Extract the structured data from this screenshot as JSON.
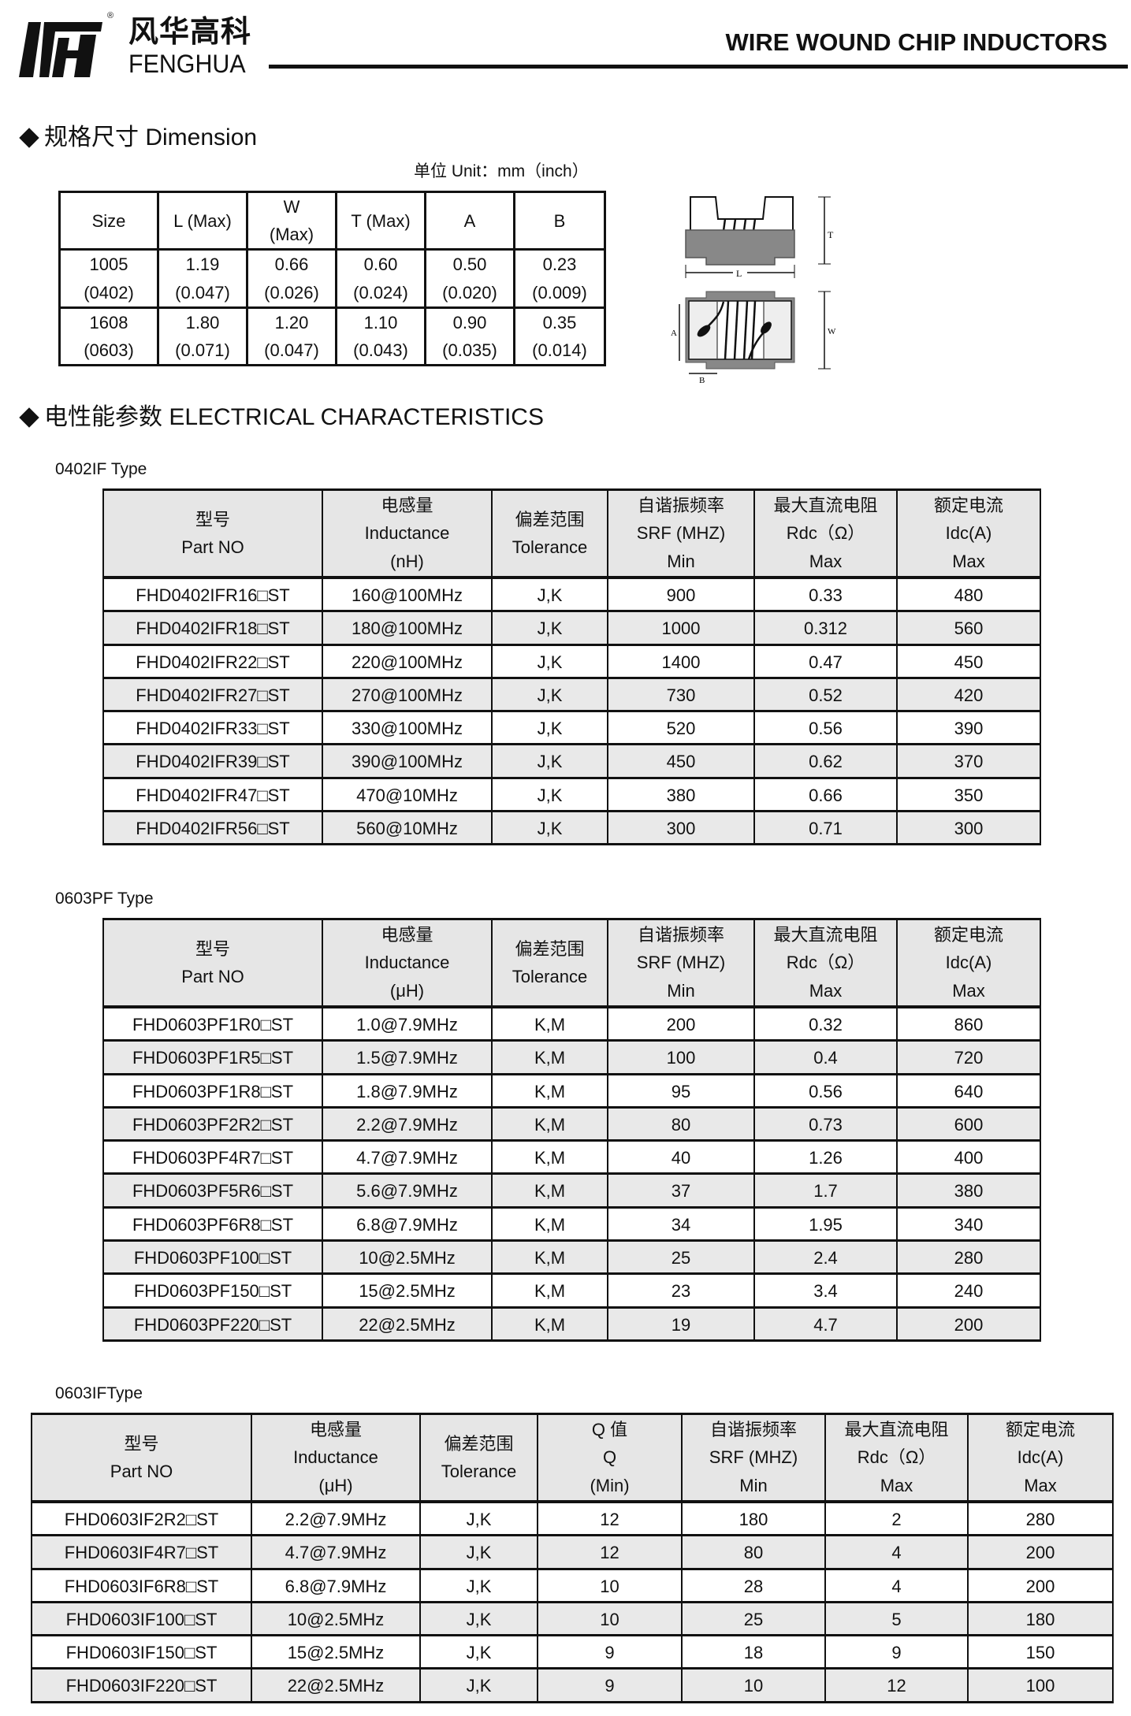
{
  "header": {
    "logo_cn": "风华高科",
    "logo_en": "FENGHUA",
    "registered": "®",
    "title": "WIRE WOUND CHIP INDUCTORS"
  },
  "dimension": {
    "heading": "规格尺寸 Dimension",
    "unit": "单位 Unit：mm（inch）",
    "columns": [
      [
        "Size"
      ],
      [
        "L (Max)"
      ],
      [
        "W",
        "(Max)"
      ],
      [
        "T (Max)"
      ],
      [
        "A"
      ],
      [
        "B"
      ]
    ],
    "rows": [
      [
        [
          "1005",
          "(0402)"
        ],
        [
          "1.19",
          "(0.047)"
        ],
        [
          "0.66",
          "(0.026)"
        ],
        [
          "0.60",
          "(0.024)"
        ],
        [
          "0.50",
          "(0.020)"
        ],
        [
          "0.23",
          "(0.009)"
        ]
      ],
      [
        [
          "1608",
          "(0603)"
        ],
        [
          "1.80",
          "(0.071)"
        ],
        [
          "1.20",
          "(0.047)"
        ],
        [
          "1.10",
          "(0.043)"
        ],
        [
          "0.90",
          "(0.035)"
        ],
        [
          "0.35",
          "(0.014)"
        ]
      ]
    ],
    "diagram_labels": {
      "T": "T",
      "L": "L",
      "A": "A",
      "W": "W",
      "B": "B"
    }
  },
  "electrical": {
    "heading": "电性能参数  ELECTRICAL CHARACTERISTICS",
    "tables": [
      {
        "label": "0402IF Type",
        "columns": [
          [
            "型号",
            "Part NO"
          ],
          [
            "电感量",
            "Inductance",
            "(nH)"
          ],
          [
            "偏差范围",
            "Tolerance"
          ],
          [
            "自谐振频率",
            "SRF (MHZ)",
            "Min"
          ],
          [
            "最大直流电阻",
            "Rdc（Ω）",
            "Max"
          ],
          [
            "额定电流",
            "Idc(A)",
            "Max"
          ]
        ],
        "rows": [
          [
            "FHD0402IFR16□ST",
            "160@100MHz",
            "J,K",
            "900",
            "0.33",
            "480"
          ],
          [
            "FHD0402IFR18□ST",
            "180@100MHz",
            "J,K",
            "1000",
            "0.312",
            "560"
          ],
          [
            "FHD0402IFR22□ST",
            "220@100MHz",
            "J,K",
            "1400",
            "0.47",
            "450"
          ],
          [
            "FHD0402IFR27□ST",
            "270@100MHz",
            "J,K",
            "730",
            "0.52",
            "420"
          ],
          [
            "FHD0402IFR33□ST",
            "330@100MHz",
            "J,K",
            "520",
            "0.56",
            "390"
          ],
          [
            "FHD0402IFR39□ST",
            "390@100MHz",
            "J,K",
            "450",
            "0.62",
            "370"
          ],
          [
            "FHD0402IFR47□ST",
            "470@10MHz",
            "J,K",
            "380",
            "0.66",
            "350"
          ],
          [
            "FHD0402IFR56□ST",
            "560@10MHz",
            "J,K",
            "300",
            "0.71",
            "300"
          ]
        ]
      },
      {
        "label": "0603PF Type",
        "columns": [
          [
            "型号",
            "Part NO"
          ],
          [
            "电感量",
            "Inductance",
            "(μH)"
          ],
          [
            "偏差范围",
            "Tolerance"
          ],
          [
            "自谐振频率",
            "SRF (MHZ)",
            "Min"
          ],
          [
            "最大直流电阻",
            "Rdc（Ω）",
            "Max"
          ],
          [
            "额定电流",
            "Idc(A)",
            "Max"
          ]
        ],
        "rows": [
          [
            "FHD0603PF1R0□ST",
            "1.0@7.9MHz",
            "K,M",
            "200",
            "0.32",
            "860"
          ],
          [
            "FHD0603PF1R5□ST",
            "1.5@7.9MHz",
            "K,M",
            "100",
            "0.4",
            "720"
          ],
          [
            "FHD0603PF1R8□ST",
            "1.8@7.9MHz",
            "K,M",
            "95",
            "0.56",
            "640"
          ],
          [
            "FHD0603PF2R2□ST",
            "2.2@7.9MHz",
            "K,M",
            "80",
            "0.73",
            "600"
          ],
          [
            "FHD0603PF4R7□ST",
            "4.7@7.9MHz",
            "K,M",
            "40",
            "1.26",
            "400"
          ],
          [
            "FHD0603PF5R6□ST",
            "5.6@7.9MHz",
            "K,M",
            "37",
            "1.7",
            "380"
          ],
          [
            "FHD0603PF6R8□ST",
            "6.8@7.9MHz",
            "K,M",
            "34",
            "1.95",
            "340"
          ],
          [
            "FHD0603PF100□ST",
            "10@2.5MHz",
            "K,M",
            "25",
            "2.4",
            "280"
          ],
          [
            "FHD0603PF150□ST",
            "15@2.5MHz",
            "K,M",
            "23",
            "3.4",
            "240"
          ],
          [
            "FHD0603PF220□ST",
            "22@2.5MHz",
            "K,M",
            "19",
            "4.7",
            "200"
          ]
        ]
      },
      {
        "label": "0603IFType",
        "columns": [
          [
            "型号",
            "Part NO"
          ],
          [
            "电感量",
            "Inductance",
            "(μH)"
          ],
          [
            "偏差范围",
            "Tolerance"
          ],
          [
            "Q 值",
            "Q",
            "(Min)"
          ],
          [
            "自谐振频率",
            "SRF (MHZ)",
            "Min"
          ],
          [
            "最大直流电阻",
            "Rdc（Ω）",
            "Max"
          ],
          [
            "额定电流",
            "Idc(A)",
            "Max"
          ]
        ],
        "rows": [
          [
            "FHD0603IF2R2□ST",
            "2.2@7.9MHz",
            "J,K",
            "12",
            "180",
            "2",
            "280"
          ],
          [
            "FHD0603IF4R7□ST",
            "4.7@7.9MHz",
            "J,K",
            "12",
            "80",
            "4",
            "200"
          ],
          [
            "FHD0603IF6R8□ST",
            "6.8@7.9MHz",
            "J,K",
            "10",
            "28",
            "4",
            "200"
          ],
          [
            "FHD0603IF100□ST",
            "10@2.5MHz",
            "J,K",
            "10",
            "25",
            "5",
            "180"
          ],
          [
            "FHD0603IF150□ST",
            "15@2.5MHz",
            "J,K",
            "9",
            "18",
            "9",
            "150"
          ],
          [
            "FHD0603IF220□ST",
            "22@2.5MHz",
            "J,K",
            "9",
            "10",
            "12",
            "100"
          ]
        ]
      }
    ]
  }
}
